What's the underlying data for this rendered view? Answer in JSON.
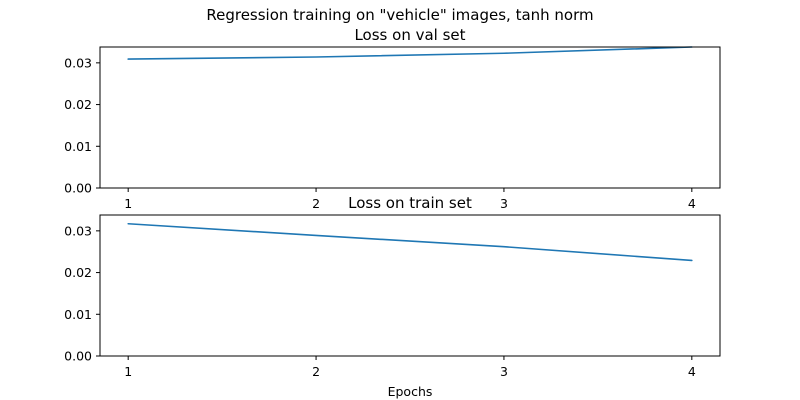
{
  "figure": {
    "title": "Regression training on \"vehicle\" images, tanh norm"
  },
  "chart_data": [
    {
      "type": "line",
      "title": "Loss on val set",
      "xlabel": "",
      "ylabel": "",
      "x": [
        1,
        2,
        3,
        4
      ],
      "x_ticks": [
        "1",
        "2",
        "3",
        "4"
      ],
      "y_ticks": [
        "0.00",
        "0.01",
        "0.02",
        "0.03"
      ],
      "xlim": [
        0.85,
        4.15
      ],
      "ylim": [
        0,
        0.0338
      ],
      "grid": false,
      "series": [
        {
          "values": [
            0.0309,
            0.0314,
            0.0323,
            0.0338
          ],
          "color": "#1f77b4"
        }
      ]
    },
    {
      "type": "line",
      "title": "Loss on train set",
      "xlabel": "Epochs",
      "ylabel": "",
      "x": [
        1,
        2,
        3,
        4
      ],
      "x_ticks": [
        "1",
        "2",
        "3",
        "4"
      ],
      "y_ticks": [
        "0.00",
        "0.01",
        "0.02",
        "0.03"
      ],
      "xlim": [
        0.85,
        4.15
      ],
      "ylim": [
        0,
        0.0338
      ],
      "grid": false,
      "series": [
        {
          "values": [
            0.0317,
            0.0289,
            0.0262,
            0.0229
          ],
          "color": "#1f77b4"
        }
      ]
    }
  ]
}
